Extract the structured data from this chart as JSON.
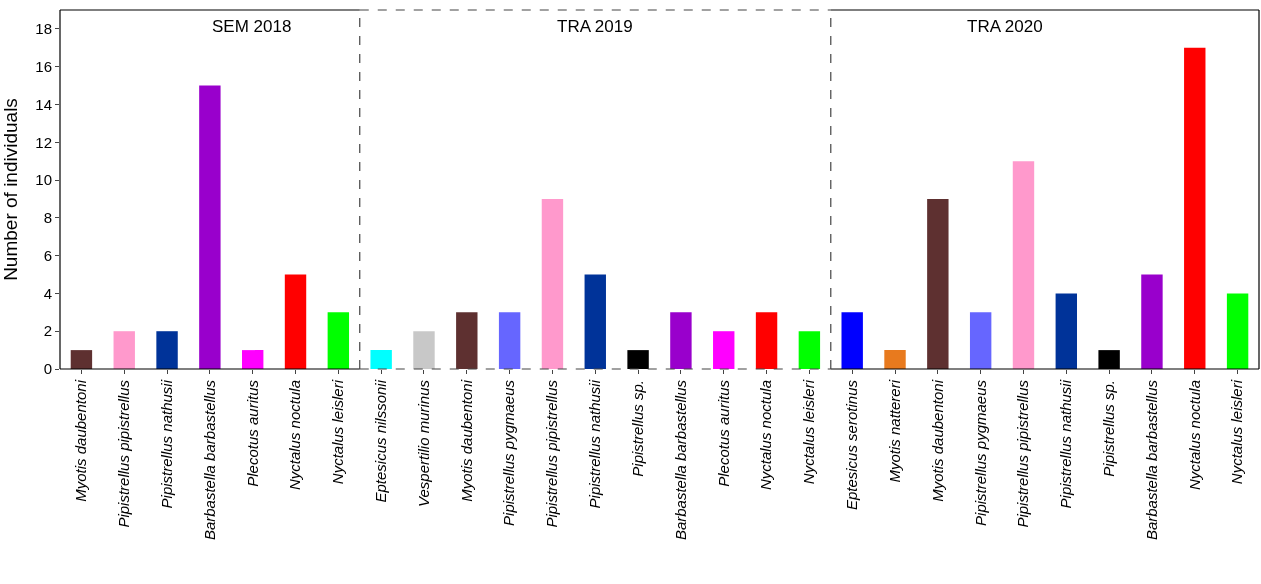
{
  "chart_data": [
    {
      "type": "bar",
      "title": "SEM 2018",
      "ylabel": "Number of individuals",
      "categories": [
        "Myotis daubentoni",
        "Pipistrellus pipistrellus",
        "Pipistrellus nathusii",
        "Barbastella barbastellus",
        "Plecotus auritus",
        "Nyctalus noctula",
        "Nyctalus leisleri"
      ],
      "values": [
        1,
        2,
        2,
        15,
        1,
        5,
        3
      ],
      "colors": [
        "#5e3030",
        "#ff99cc",
        "#003399",
        "#9900cc",
        "#ff00ff",
        "#ff0000",
        "#00ff00"
      ],
      "ylim": [
        0,
        19
      ],
      "yticks": [
        0,
        2,
        4,
        6,
        8,
        10,
        12,
        14,
        16,
        18
      ]
    },
    {
      "type": "bar",
      "title": "TRA 2019",
      "categories": [
        "Eptesicus nilssonii",
        "Vespertilio murinus",
        "Myotis daubentoni",
        "Pipistrellus pygmaeus",
        "Pipistrellus pipistrellus",
        "Pipistrellus nathusii",
        "Pipistrellus sp.",
        "Barbastella barbastellus",
        "Plecotus auritus",
        "Nyctalus noctula",
        "Nyctalus leisleri"
      ],
      "values": [
        1,
        2,
        3,
        3,
        9,
        5,
        1,
        3,
        2,
        3,
        2
      ],
      "colors": [
        "#00ffff",
        "#c8c8c8",
        "#5e3030",
        "#6666ff",
        "#ff99cc",
        "#003399",
        "#000000",
        "#9900cc",
        "#ff00ff",
        "#ff0000",
        "#00ff00"
      ],
      "ylim": [
        0,
        19
      ],
      "yticks": [
        0,
        2,
        4,
        6,
        8,
        10,
        12,
        14,
        16,
        18
      ],
      "tick_labels": "x"
    },
    {
      "type": "bar",
      "title": "TRA 2020",
      "categories": [
        "Eptesicus serotinus",
        "Myotis nattereri",
        "Myotis daubentoni",
        "Pipistrellus pygmaeus",
        "Pipistrellus pipistrellus",
        "Pipistrellus nathusii",
        "Pipistrellus sp.",
        "Barbastella barbastellus",
        "Nyctalus noctula",
        "Nyctalus leisleri"
      ],
      "values": [
        3,
        1,
        9,
        3,
        11,
        4,
        1,
        5,
        17,
        4
      ],
      "colors": [
        "#0000ff",
        "#e87a1e",
        "#5e3030",
        "#6666ff",
        "#ff99cc",
        "#003399",
        "#000000",
        "#9900cc",
        "#ff0000",
        "#00ff00"
      ],
      "ylim": [
        0,
        19
      ],
      "yticks": [
        0,
        2,
        4,
        6,
        8,
        10,
        12,
        14,
        16,
        18
      ],
      "tick_labels": "x"
    }
  ]
}
